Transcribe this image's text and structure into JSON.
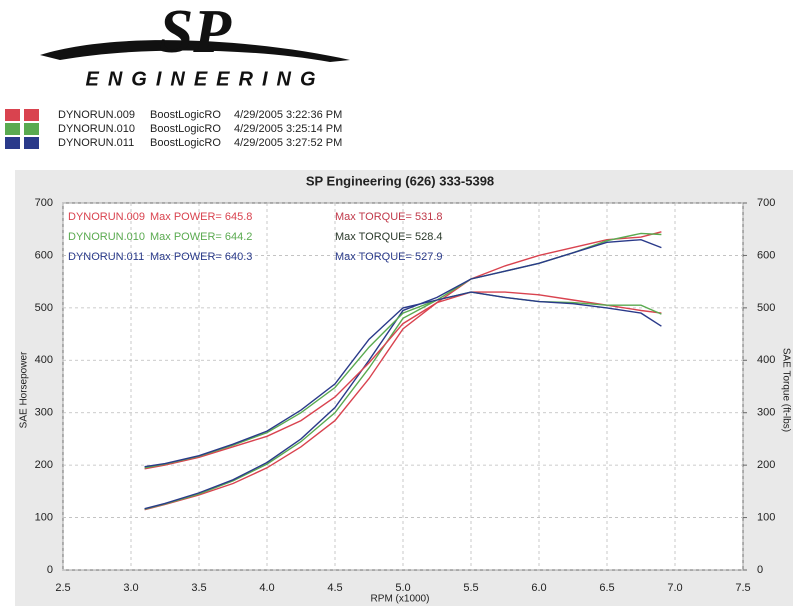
{
  "logo": {
    "mark": "SP",
    "name": "ENGINEERING"
  },
  "runs": [
    {
      "file": "DYNORUN.009",
      "profile": "BoostLogicRO",
      "time": "4/29/2005 3:22:36 PM",
      "color": "#d9434f"
    },
    {
      "file": "DYNORUN.010",
      "profile": "BoostLogicRO",
      "time": "4/29/2005 3:25:14 PM",
      "color": "#5aaa50"
    },
    {
      "file": "DYNORUN.011",
      "profile": "BoostLogicRO",
      "time": "4/29/2005 3:27:52 PM",
      "color": "#2a3a8a"
    }
  ],
  "chart_data": {
    "type": "line",
    "title": "SP Engineering (626) 333-5398",
    "x_label": "RPM (x1000)",
    "y_label": "SAE Horsepower",
    "y2_label": "SAE Torque (ft-lbs)",
    "annotations": [
      {
        "run": "DYNORUN.009",
        "power": "Max POWER= 645.8",
        "torque": "Max TORQUE= 531.8",
        "color": "#d9434f",
        "torque_color": "#c0394a"
      },
      {
        "run": "DYNORUN.010",
        "power": "Max POWER= 644.2",
        "torque": "Max TORQUE= 528.4",
        "color": "#5aaa50",
        "torque_color": "#2b3a2b"
      },
      {
        "run": "DYNORUN.011",
        "power": "Max POWER= 640.3",
        "torque": "Max TORQUE= 527.9",
        "color": "#2a3a8a",
        "torque_color": "#2a3a8a"
      }
    ],
    "x": [
      3.1,
      3.25,
      3.5,
      3.75,
      4.0,
      4.25,
      4.5,
      4.75,
      5.0,
      5.25,
      5.5,
      5.75,
      6.0,
      6.25,
      6.5,
      6.75,
      6.9
    ],
    "xlim": [
      2.5,
      7.5
    ],
    "xticks": [
      2.5,
      {
        "value": 3,
        "label": "3.0"
      },
      3.5,
      {
        "value": 4,
        "label": "4.0"
      },
      4.5,
      {
        "value": 5,
        "label": "5.0"
      },
      5.5,
      {
        "value": 6,
        "label": "6.0"
      },
      6.5,
      {
        "value": 7,
        "label": "7.0"
      },
      7.5
    ],
    "ylim": [
      0,
      700
    ],
    "yticks": [
      0,
      100,
      200,
      300,
      400,
      500,
      600,
      700
    ],
    "y2lim": [
      0,
      700
    ],
    "y2ticks": [
      0,
      100,
      200,
      300,
      400,
      500,
      600,
      700
    ],
    "grid": true,
    "series": [
      {
        "color": "#d9434f",
        "values": [
          115,
          125,
          143,
          165,
          195,
          235,
          285,
          365,
          460,
          510,
          555,
          580,
          600,
          615,
          630,
          635,
          645
        ]
      },
      {
        "color": "#5aaa50",
        "values": [
          116,
          126,
          145,
          170,
          202,
          245,
          300,
          385,
          480,
          515,
          555,
          570,
          585,
          605,
          628,
          642,
          640
        ]
      },
      {
        "color": "#2a3a8a",
        "values": [
          117,
          127,
          147,
          172,
          205,
          250,
          310,
          400,
          495,
          520,
          555,
          570,
          585,
          605,
          625,
          630,
          615
        ]
      },
      {
        "color": "#d9434f",
        "axis": "y2",
        "values": [
          193,
          200,
          215,
          235,
          255,
          285,
          330,
          395,
          470,
          510,
          530,
          530,
          525,
          515,
          505,
          495,
          490
        ]
      },
      {
        "color": "#5aaa50",
        "axis": "y2",
        "values": [
          195,
          202,
          217,
          238,
          262,
          300,
          348,
          425,
          490,
          515,
          530,
          520,
          512,
          510,
          505,
          505,
          488
        ]
      },
      {
        "color": "#2a3a8a",
        "axis": "y2",
        "values": [
          197,
          203,
          218,
          240,
          265,
          305,
          355,
          440,
          500,
          515,
          530,
          520,
          512,
          508,
          500,
          490,
          465
        ]
      }
    ]
  }
}
